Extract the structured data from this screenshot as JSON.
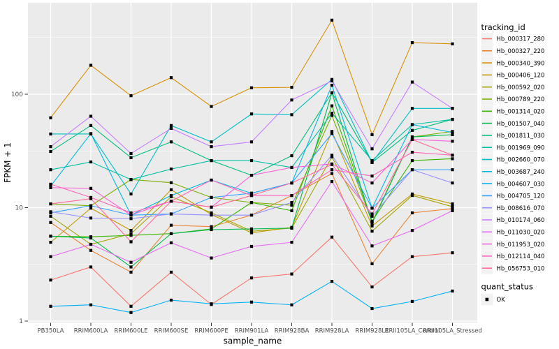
{
  "figure": {
    "xlabel": "sample_name",
    "ylabel": "FPKM + 1"
  },
  "colors": {
    "panel_bg": "#EBEBEB",
    "grid": "#FFFFFF",
    "axis_text": "#4D4D4D",
    "tick_mark": "#333333",
    "title_text": "#000000",
    "point": "#000000",
    "legend_key_bg": "#F2F2F2"
  },
  "chart_data": {
    "type": "line",
    "title": "",
    "xlabel": "sample_name",
    "ylabel": "FPKM + 1",
    "y_scale": "log10",
    "y_ticks": [
      1,
      10,
      100
    ],
    "y_minor_ticks": [
      3.1623,
      31.623,
      316.23
    ],
    "ylim": [
      1,
      600
    ],
    "grid": true,
    "point_shape": "filled-square",
    "legend_position": "right",
    "legend": {
      "tracking_title": "tracking_id",
      "quant_title": "quant_status",
      "quant_items": [
        {
          "label": "OK",
          "shape": "filled-square",
          "color": "#000000"
        }
      ]
    },
    "categories": [
      "PB350LA",
      "RRIM600LA",
      "RRIM600LE",
      "RRIM600SE",
      "RRIM600PE",
      "RRIM901LA",
      "RRIM928BA",
      "RRIM928LA",
      "RRIM928LE",
      "RRII105LA_Control",
      "RRII105LA_Stressed"
    ],
    "series": [
      {
        "name": "Hb_000317_280",
        "color": "#F8766D",
        "values": [
          2.3,
          3.0,
          1.35,
          2.7,
          1.4,
          2.4,
          2.6,
          5.5,
          2.0,
          3.7,
          4.0
        ]
      },
      {
        "name": "Hb_000327_220",
        "color": "#EA8331",
        "values": [
          7.4,
          4.2,
          2.7,
          7.0,
          6.8,
          8.6,
          12.8,
          20,
          3.2,
          9.0,
          9.8
        ]
      },
      {
        "name": "Hb_000340_390",
        "color": "#D89000",
        "values": [
          62,
          180,
          97,
          140,
          78,
          114,
          115,
          450,
          44,
          285,
          278
        ]
      },
      {
        "name": "Hb_000406_120",
        "color": "#C09B00",
        "values": [
          4.95,
          9.9,
          6.3,
          14.4,
          8.7,
          6.0,
          6.7,
          47,
          6.9,
          13.2,
          10.8
        ]
      },
      {
        "name": "Hb_000592_020",
        "color": "#A3A500",
        "values": [
          8.4,
          4.75,
          5.9,
          12.5,
          9.0,
          6.2,
          6.6,
          28,
          6.2,
          12.8,
          10.2
        ]
      },
      {
        "name": "Hb_000789_220",
        "color": "#7CAE00",
        "values": [
          10.8,
          10.4,
          17.7,
          16.6,
          12.3,
          11.1,
          10.5,
          65,
          7.5,
          42,
          47
        ]
      },
      {
        "name": "Hb_001314_020",
        "color": "#39B600",
        "values": [
          5.6,
          5.54,
          5.7,
          5.9,
          6.5,
          11.1,
          9.4,
          79,
          7.6,
          26,
          27
        ]
      },
      {
        "name": "Hb_001507_040",
        "color": "#00BB4E",
        "values": [
          5.6,
          5.4,
          3.0,
          5.9,
          6.4,
          6.5,
          6.6,
          103,
          7.3,
          42,
          44
        ]
      },
      {
        "name": "Hb_001811_030",
        "color": "#00BF7D",
        "values": [
          31.3,
          53,
          27.6,
          38,
          26,
          19.3,
          28.7,
          103,
          25,
          48,
          60
        ]
      },
      {
        "name": "Hb_001969_090",
        "color": "#00C1A3",
        "values": [
          21.6,
          25.3,
          17.7,
          21.9,
          26,
          26,
          22.6,
          68,
          26,
          54,
          60
        ]
      },
      {
        "name": "Hb_002660_070",
        "color": "#00BFC4",
        "values": [
          44.6,
          44.6,
          13.2,
          53,
          38,
          67,
          66,
          135,
          25,
          75,
          75
        ]
      },
      {
        "name": "Hb_003687_240",
        "color": "#00BAE0",
        "values": [
          15.5,
          45,
          8.6,
          12.8,
          17.5,
          13.4,
          16.5,
          120,
          9.9,
          54,
          46
        ]
      },
      {
        "name": "Hb_004607_030",
        "color": "#00B0F6",
        "values": [
          1.35,
          1.39,
          1.19,
          1.53,
          1.42,
          1.47,
          1.39,
          2.24,
          1.29,
          1.49,
          1.84
        ]
      },
      {
        "name": "Hb_004705_120",
        "color": "#35A2FF",
        "values": [
          9.0,
          10.4,
          8.6,
          8.8,
          12.3,
          13.4,
          16.5,
          45,
          9.9,
          21.6,
          21.6
        ]
      },
      {
        "name": "Hb_008616_070",
        "color": "#9590FF",
        "values": [
          9.2,
          8.1,
          8.0,
          8.8,
          8.6,
          8.6,
          11.1,
          29,
          8.4,
          21.6,
          16.5
        ]
      },
      {
        "name": "Hb_010174_060",
        "color": "#C77CFF",
        "values": [
          34.5,
          64,
          30,
          50,
          34.5,
          38,
          89,
          131,
          33,
          128,
          75
        ]
      },
      {
        "name": "Hb_011030_020",
        "color": "#E76BF3",
        "values": [
          3.7,
          4.75,
          3.3,
          4.9,
          3.6,
          4.55,
          4.95,
          17,
          4.6,
          6.3,
          9.4
        ]
      },
      {
        "name": "Hb_011953_020",
        "color": "#FA62DB",
        "values": [
          15.0,
          14.8,
          8.6,
          11.4,
          10.1,
          19.3,
          22.6,
          24.3,
          16.5,
          39.9,
          38.5
        ]
      },
      {
        "name": "Hb_012114_040",
        "color": "#FF62BC",
        "values": [
          16.1,
          12.3,
          9.0,
          11.4,
          17.5,
          12.8,
          12.8,
          21.6,
          19.0,
          30.8,
          29.0
        ]
      },
      {
        "name": "Hb_056753_010",
        "color": "#FF6A98",
        "values": [
          10.8,
          12.0,
          5.0,
          11.4,
          10.1,
          12.8,
          16.5,
          24.0,
          8.8,
          39.9,
          29.0
        ]
      }
    ]
  }
}
